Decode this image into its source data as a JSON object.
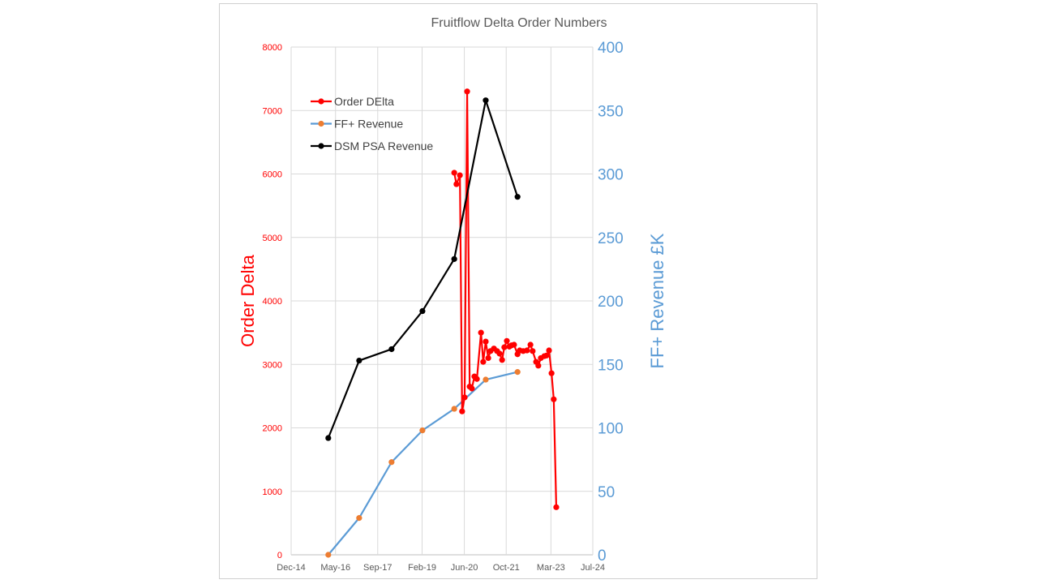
{
  "chart_data": {
    "type": "line",
    "title": "Fruitflow Delta Order Numbers",
    "xlabel": "",
    "ylabel": "Order Delta",
    "y2label": "FF+ Revenue £K",
    "x_unit": "decimal year",
    "xlim": [
      2014.92,
      2024.5
    ],
    "ylim": [
      0,
      8000
    ],
    "y2lim": [
      0,
      400
    ],
    "x_ticks": [
      {
        "label": "Dec-14",
        "x": 2014.92
      },
      {
        "label": "May-16",
        "x": 2016.33
      },
      {
        "label": "Sep-17",
        "x": 2017.67
      },
      {
        "label": "Feb-19",
        "x": 2019.08
      },
      {
        "label": "Jun-20",
        "x": 2020.42
      },
      {
        "label": "Oct-21",
        "x": 2021.75
      },
      {
        "label": "Mar-23",
        "x": 2023.17
      },
      {
        "label": "Jul-24",
        "x": 2024.5
      }
    ],
    "y_ticks": [
      "0",
      "1000",
      "2000",
      "3000",
      "4000",
      "5000",
      "6000",
      "7000",
      "8000"
    ],
    "y2_ticks": [
      "0",
      "50",
      "100",
      "150",
      "200",
      "250",
      "300",
      "350",
      "400"
    ],
    "grid": true,
    "legend": "top-left",
    "series": [
      {
        "name": "Order DElta",
        "axis": "left",
        "color": "#ff0000",
        "marker": "#ff0000",
        "x": [
          2020.1,
          2020.17,
          2020.28,
          2020.35,
          2020.43,
          2020.51,
          2020.59,
          2020.66,
          2020.74,
          2020.82,
          2020.95,
          2021.02,
          2021.1,
          2021.18,
          2021.25,
          2021.36,
          2021.46,
          2021.54,
          2021.62,
          2021.69,
          2021.77,
          2021.85,
          2021.92,
          2022.0,
          2022.11,
          2022.18,
          2022.29,
          2022.41,
          2022.52,
          2022.59,
          2022.7,
          2022.77,
          2022.85,
          2022.96,
          2023.03,
          2023.11,
          2023.19,
          2023.26,
          2023.34
        ],
        "y": [
          6020,
          5840,
          5980,
          2260,
          2480,
          7300,
          2650,
          2620,
          2810,
          2770,
          3500,
          3040,
          3360,
          3100,
          3210,
          3250,
          3210,
          3170,
          3070,
          3270,
          3370,
          3280,
          3300,
          3310,
          3160,
          3220,
          3210,
          3220,
          3310,
          3210,
          3040,
          2980,
          3100,
          3130,
          3140,
          3220,
          2860,
          2450,
          750
        ]
      },
      {
        "name": "FF+ Revenue",
        "axis": "right",
        "color": "#5b9bd5",
        "marker": "#ed7d31",
        "x": [
          2016.1,
          2017.08,
          2018.11,
          2019.09,
          2020.1,
          2021.1,
          2022.11
        ],
        "y": [
          0,
          29,
          73,
          98,
          115,
          138,
          144
        ]
      },
      {
        "name": "DSM PSA Revenue",
        "axis": "right",
        "color": "#000000",
        "marker": "#000000",
        "x": [
          2016.1,
          2017.08,
          2018.11,
          2019.09,
          2020.1,
          2021.1,
          2022.11
        ],
        "y": [
          92,
          153,
          162,
          192,
          233,
          358,
          282
        ]
      }
    ]
  }
}
